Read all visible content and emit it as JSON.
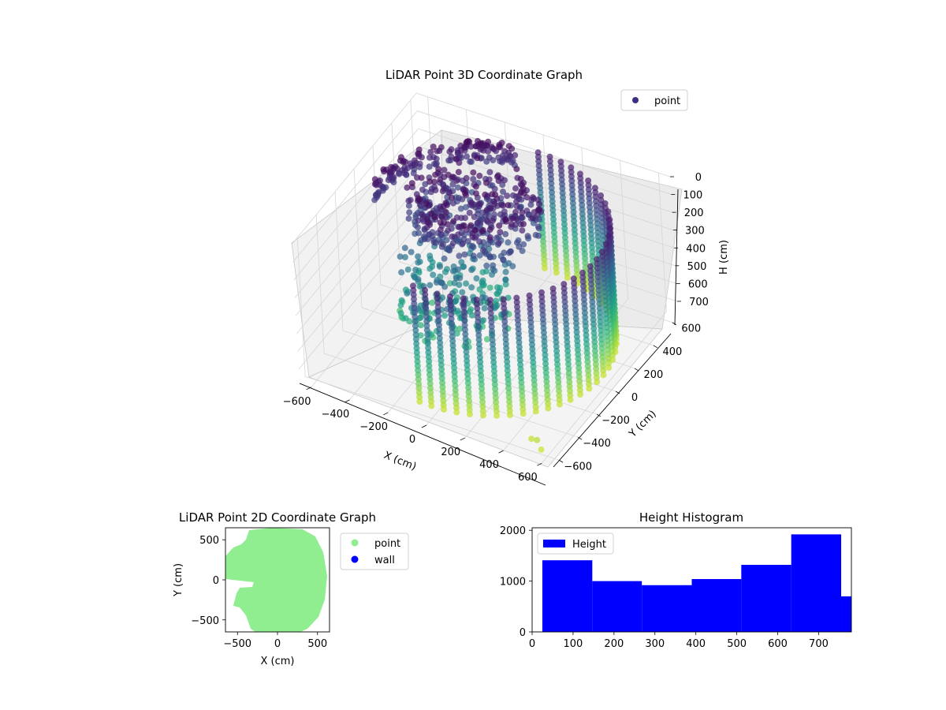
{
  "colors": {
    "viridis": [
      "#440154",
      "#482878",
      "#3e4989",
      "#31688e",
      "#26828e",
      "#1f9e89",
      "#35b779",
      "#6ece58",
      "#b5de2b",
      "#fde725"
    ],
    "point_2d": "#90ee90",
    "wall_2d": "#0000ff",
    "histogram": "#0000ff",
    "legend_point_3d": "#3b2f7f"
  },
  "chart_data": [
    {
      "type": "scatter3d",
      "title": "LiDAR Point 3D Coordinate Graph",
      "xlabel": "X (cm)",
      "ylabel": "Y (cm)",
      "zlabel": "H (cm)",
      "xticks": [
        -600,
        -400,
        -200,
        0,
        200,
        400,
        600
      ],
      "yticks": [
        -600,
        -400,
        -200,
        0,
        200,
        400,
        600
      ],
      "zticks": [
        0,
        100,
        200,
        300,
        400,
        500,
        600,
        700
      ],
      "xlim": [
        -660,
        660
      ],
      "ylim": [
        -660,
        660
      ],
      "zlim": [
        0,
        780
      ],
      "z_inverted": true,
      "colormap": "viridis",
      "legend": [
        {
          "label": "point"
        }
      ],
      "legend_position": "top-right",
      "grid": true,
      "shape": "half-cylinder of vertical point columns (radius ~600) plus a point cluster near the top-center"
    },
    {
      "type": "scatter",
      "title": "LiDAR Point 2D Coordinate Graph",
      "xlabel": "X (cm)",
      "ylabel": "Y (cm)",
      "xticks": [
        -500,
        0,
        500
      ],
      "yticks": [
        -500,
        0,
        500
      ],
      "xlim": [
        -650,
        650
      ],
      "ylim": [
        -650,
        650
      ],
      "legend": [
        {
          "label": "point"
        },
        {
          "label": "wall"
        }
      ],
      "legend_position": "outside-right",
      "series": [
        {
          "name": "point",
          "shape": "filled disc of radius ~600 with notches on the left side"
        },
        {
          "name": "wall",
          "points": []
        }
      ]
    },
    {
      "type": "bar",
      "title": "Height Histogram",
      "bins": [
        {
          "start": 25,
          "end": 147,
          "value": 1410
        },
        {
          "start": 147,
          "end": 268,
          "value": 1000
        },
        {
          "start": 268,
          "end": 390,
          "value": 920
        },
        {
          "start": 390,
          "end": 511,
          "value": 1040
        },
        {
          "start": 511,
          "end": 633,
          "value": 1320
        },
        {
          "start": 633,
          "end": 755,
          "value": 1920
        },
        {
          "start": 755,
          "end": 876,
          "value": 700
        }
      ],
      "xticks": [
        0,
        100,
        200,
        300,
        400,
        500,
        600,
        700
      ],
      "yticks": [
        0,
        1000,
        2000
      ],
      "xlim": [
        0,
        780
      ],
      "ylim": [
        0,
        2050
      ],
      "legend": [
        {
          "label": "Height"
        }
      ],
      "legend_position": "top-left"
    }
  ]
}
